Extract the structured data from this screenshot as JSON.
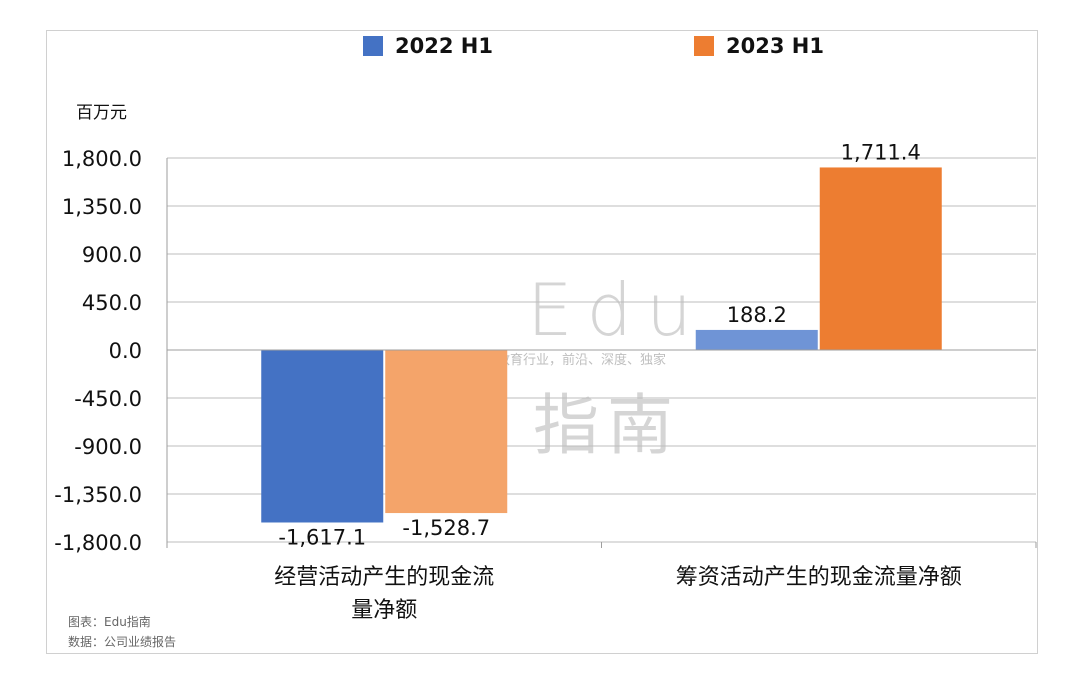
{
  "chart_data": {
    "type": "bar",
    "categories": [
      "经营活动产生的现金流量净额",
      "筹资活动产生的现金流量净额"
    ],
    "category_lines": [
      [
        "经营活动产生的现金流",
        "量净额"
      ],
      [
        "筹资活动产生的现金流量净额"
      ]
    ],
    "series": [
      {
        "name": "2022 H1",
        "values": [
          -1617.1,
          188.2
        ],
        "labels": [
          "-1,617.1",
          "188.2"
        ]
      },
      {
        "name": "2023 H1",
        "values": [
          -1528.7,
          1711.4
        ],
        "labels": [
          "-1,528.7",
          "1,711.4"
        ]
      }
    ],
    "ylim": [
      -1800,
      1800
    ],
    "yticks": [
      "1,800.0",
      "1,350.0",
      "900.0",
      "450.0",
      "0.0",
      "-450.0",
      "-900.0",
      "-1,350.0",
      "-1,800.0"
    ],
    "ytick_values": [
      1800,
      1350,
      900,
      450,
      0,
      -450,
      -900,
      -1350,
      -1800
    ],
    "unit": "百万元",
    "grid": true,
    "legend_position": "top"
  },
  "colors": {
    "series_2022": "#4472c4",
    "series_2022_light": "#6f94d6",
    "series_2023": "#ed7d31",
    "series_2023_light": "#f4a46a",
    "grid": "#bdbdbd"
  },
  "footer": {
    "chart_by": "图表：Edu指南",
    "data_source": "数据：公司业绩报告"
  },
  "watermark": {
    "brand": "Edu",
    "brand_cn": "指南",
    "tagline": "教育行业，前沿、深度、独家"
  }
}
